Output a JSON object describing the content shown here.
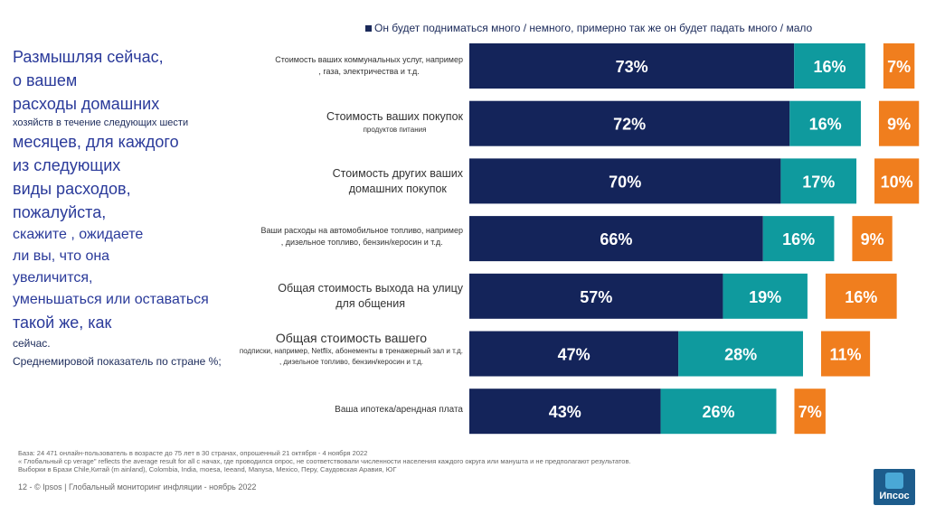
{
  "legend": "Он будет подниматься много / немного, примерно так же он будет падать много / мало",
  "question": {
    "lines": [
      "Размышляя сейчас,",
      "о вашем",
      "расходы домашних",
      "хозяйств в течение следующих шести",
      "месяцев, для каждого",
      "из следующих",
      "виды расходов,",
      "пожалуйста,",
      "скажите , ожидаете",
      "ли вы, что она",
      "увеличится,",
      "уменьшаться или оставаться",
      "такой же, как",
      "сейчас."
    ],
    "average_note": "Среднемировой показатель по стране %;"
  },
  "rows": [
    {
      "label": "Стоимость ваших коммунальных услуг, например",
      "sub": ", газа, электричества и т.д."
    },
    {
      "label": "Стоимость ваших покупок",
      "sub": "продуктов питания"
    },
    {
      "label": "Стоимость других ваших",
      "sub": "домашних покупок"
    },
    {
      "label": "Ваши расходы на автомобильное топливо, например",
      "sub": ", дизельное топливо, бензин/керосин и т.д."
    },
    {
      "label": "Общая стоимость выхода на улицу",
      "sub": "для общения"
    },
    {
      "label": "Общая стоимость вашего",
      "sub": "подписки, например, Netflix, абонементы в тренажерный зал и т.д.",
      "sub2": ", дизельное топливо, бензин/керосин и т.д."
    },
    {
      "label": "Ваша ипотека/арендная плата",
      "sub": ""
    }
  ],
  "chart_data": {
    "type": "bar",
    "stacked": true,
    "orientation": "horizontal",
    "categories": [
      "Стоимость ваших коммунальных услуг",
      "Стоимость ваших покупок продуктов питания",
      "Стоимость других ваших домашних покупок",
      "Ваши расходы на автомобильное топливо",
      "Общая стоимость выхода на улицу для общения",
      "Общая стоимость вашего",
      "Ваша ипотека/арендная плата"
    ],
    "series": [
      {
        "name": "Он будет подниматься много / немного",
        "color": "#14245a",
        "values": [
          73,
          72,
          70,
          66,
          57,
          47,
          43
        ]
      },
      {
        "name": "примерно так же",
        "color": "#0f9a9e",
        "values": [
          16,
          16,
          17,
          16,
          19,
          28,
          26
        ]
      },
      {
        "name": "он будет падать много / мало",
        "color": "#f07e1e",
        "values": [
          7,
          9,
          10,
          9,
          16,
          11,
          7
        ]
      }
    ],
    "value_suffix": "%"
  },
  "footnotes": {
    "base": "База: 24 471 онлайн-пользователь в возрасте до 75 лет в 30 странах, опрошенный 21 октября - 4 ноября 2022",
    "line2": "« Глобальный ср  verage\" reflects the average result for all c                 начах, где проводился опрос, не соответствовали численности населения каждого округа или манушта и не предполагают результатов.",
    "line3": "Выборки в Брази  Chile,Китай (m ainland), Colombia, India, moesa, Ieeand, Manysa, Mexico, Перу, Саудовская Аравия, ЮГ"
  },
  "footer": "12 - © Ipsos | Глобальный мониторинг инфляции - ноябрь 2022",
  "logo_text": "Ипсос"
}
